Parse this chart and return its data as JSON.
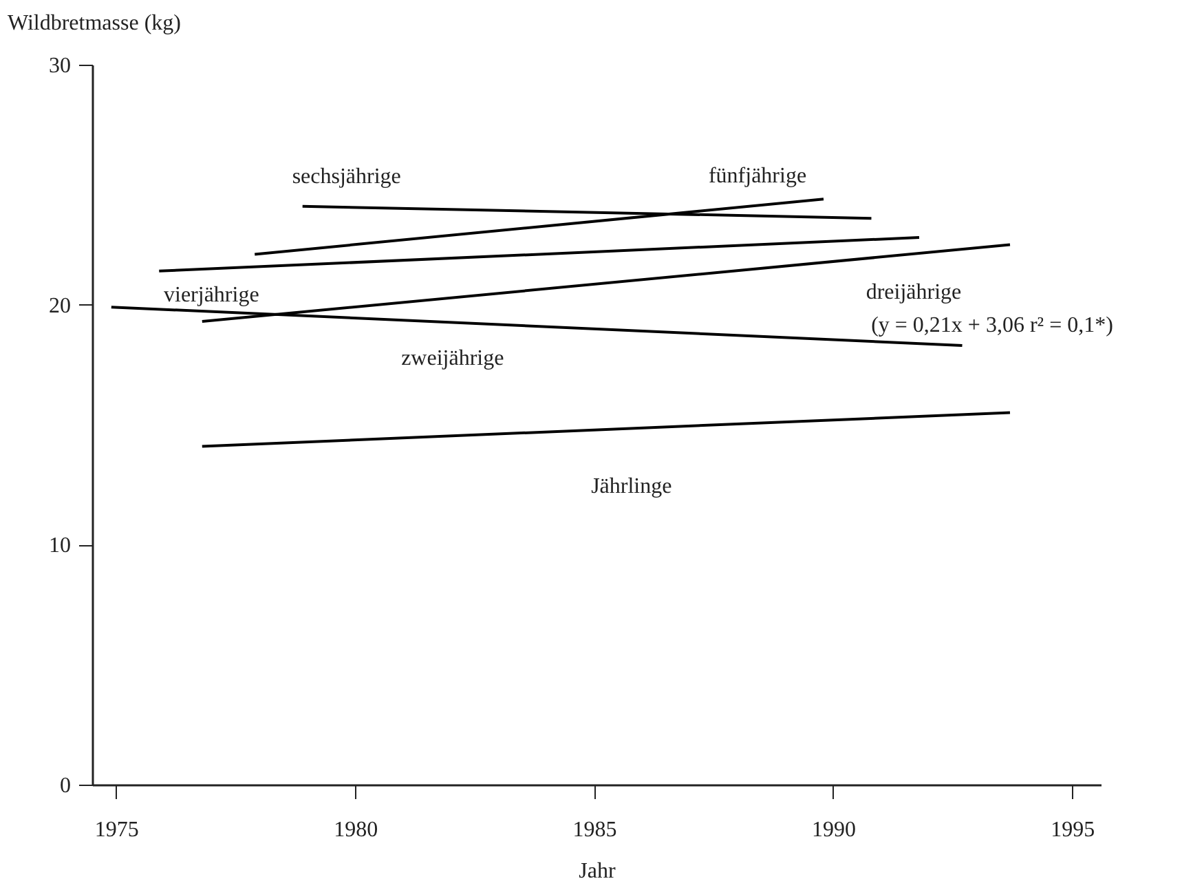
{
  "chart_data": {
    "type": "line",
    "xlabel": "Jahr",
    "ylabel": "Wildbretmasse (kg)",
    "xlim": [
      1974.5,
      1995.6
    ],
    "ylim": [
      0,
      30
    ],
    "xticks": [
      1975,
      1980,
      1985,
      1990,
      1995
    ],
    "yticks": [
      0,
      10,
      20,
      30
    ],
    "series": [
      {
        "name": "sechsjährige",
        "color": "#000000",
        "x": [
          1978.9,
          1990.8
        ],
        "values": [
          24.1,
          23.6
        ]
      },
      {
        "name": "fünfjährige",
        "color": "#000000",
        "x": [
          1977.9,
          1989.8
        ],
        "values": [
          22.1,
          24.4
        ]
      },
      {
        "name": "vierjährige",
        "color": "#000000",
        "x": [
          1975.9,
          1991.8
        ],
        "values": [
          21.4,
          22.8
        ]
      },
      {
        "name": "dreijährige",
        "color": "#000000",
        "x": [
          1976.8,
          1993.7
        ],
        "values": [
          19.3,
          22.5
        ]
      },
      {
        "name": "zweijährige",
        "color": "#000000",
        "x": [
          1974.9,
          1992.7
        ],
        "values": [
          19.9,
          18.3
        ]
      },
      {
        "name": "Jährlinge",
        "color": "#000000",
        "x": [
          1976.8,
          1993.7
        ],
        "values": [
          14.1,
          15.5
        ]
      }
    ],
    "annotations": [
      "(y = 0,21x + 3,06 r² = 0,1*)"
    ]
  }
}
